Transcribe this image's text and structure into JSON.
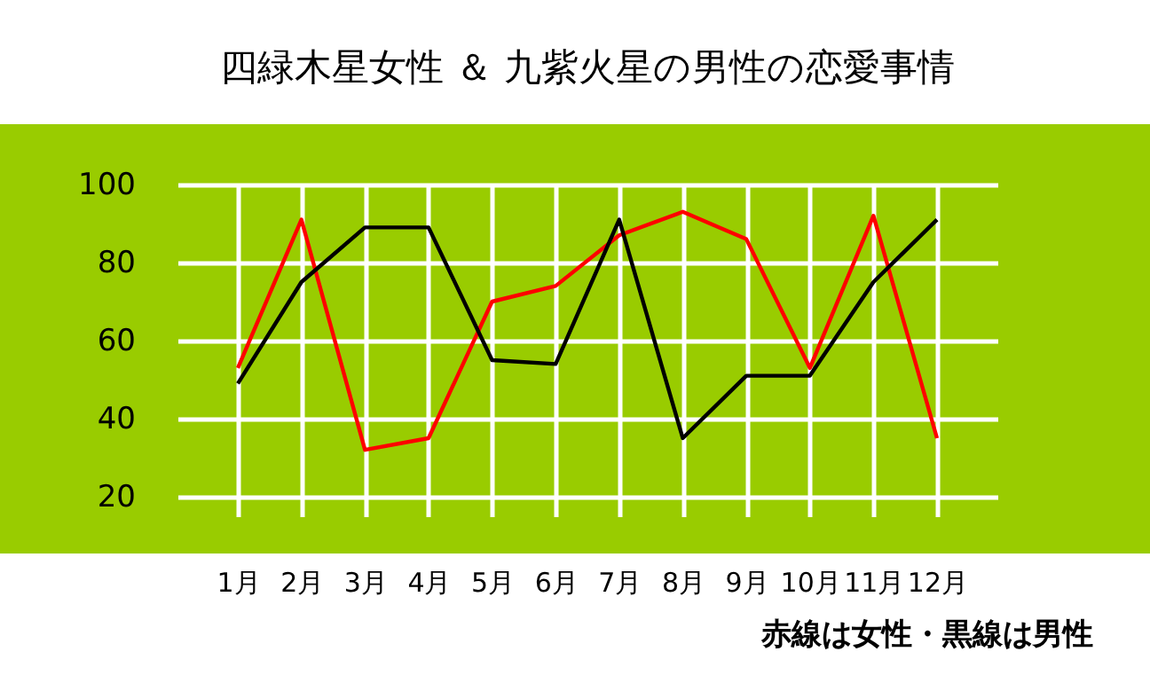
{
  "chart_data": {
    "type": "line",
    "title": "四緑木星女性 ＆ 九紫火星の男性の恋愛事情",
    "categories": [
      "1月",
      "2月",
      "3月",
      "4月",
      "5月",
      "6月",
      "7月",
      "8月",
      "9月",
      "10月",
      "11月",
      "12月"
    ],
    "series": [
      {
        "color": "#ff0000",
        "values": [
          53,
          91,
          32,
          35,
          70,
          74,
          87,
          93,
          86,
          53,
          92,
          35
        ]
      },
      {
        "color": "#000000",
        "values": [
          49,
          75,
          89,
          89,
          55,
          54,
          91,
          35,
          51,
          51,
          75,
          91
        ]
      }
    ],
    "ylim": [
      15,
      100
    ],
    "yticks": [
      20,
      40,
      60,
      80,
      100
    ],
    "grid": true,
    "marker": "none",
    "line_style": "solid",
    "annotations": [
      "赤線は女性・黒線は男性"
    ]
  }
}
